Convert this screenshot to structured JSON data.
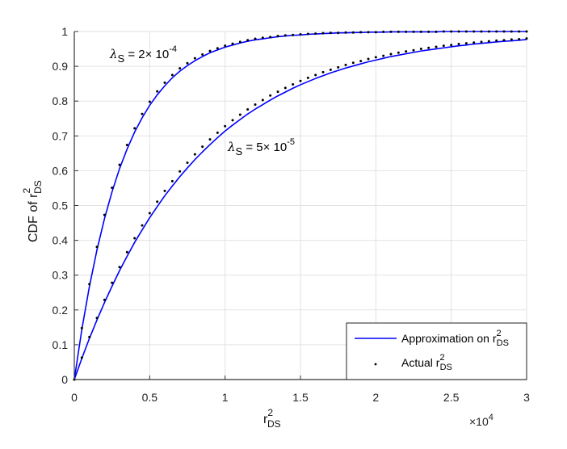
{
  "chart_data": {
    "type": "line",
    "xlabel": {
      "base": "r",
      "sup": "2",
      "sub": "DS"
    },
    "ylabel": {
      "base": "CDF of r",
      "sup": "2",
      "sub": "DS"
    },
    "x_multiplier": {
      "base": "×10",
      "sup": "4"
    },
    "xlim": [
      0,
      30000
    ],
    "ylim": [
      0,
      1
    ],
    "xticks": [
      0,
      5000,
      10000,
      15000,
      20000,
      25000,
      30000
    ],
    "xtick_labels": [
      "0",
      "0.5",
      "1",
      "1.5",
      "2",
      "2.5",
      "3"
    ],
    "yticks": [
      0,
      0.1,
      0.2,
      0.3,
      0.4,
      0.5,
      0.6,
      0.7,
      0.8,
      0.9,
      1
    ],
    "ytick_labels": [
      "0",
      "0.1",
      "0.2",
      "0.3",
      "0.4",
      "0.5",
      "0.6",
      "0.7",
      "0.8",
      "0.9",
      "1"
    ],
    "grid": true,
    "legend_position": "bottom-right",
    "legend": [
      {
        "label": "Approximation on r",
        "sup": "2",
        "sub": "DS",
        "style": "line",
        "color": "#0000ff"
      },
      {
        "label": "Actual r",
        "sup": "2",
        "sub": "DS",
        "style": "dots",
        "color": "#000000"
      }
    ],
    "annotations": [
      {
        "lambda": "λ",
        "sub": "S",
        "text": " = 2×  10",
        "sup": "-4"
      },
      {
        "lambda": "λ",
        "sub": "S",
        "text": " = 5×  10",
        "sup": "-5"
      }
    ],
    "x_step": 500,
    "series": [
      {
        "name": "Approximation λS=2e-4",
        "style": "line",
        "color": "#0000ff",
        "values": [
          0,
          0.144,
          0.267,
          0.372,
          0.462,
          0.539,
          0.606,
          0.662,
          0.711,
          0.752,
          0.788,
          0.818,
          0.844,
          0.867,
          0.886,
          0.902,
          0.916,
          0.928,
          0.939,
          0.947,
          0.955,
          0.961,
          0.967,
          0.972,
          0.976,
          0.979,
          0.982,
          0.985,
          0.987,
          0.989,
          0.99,
          0.992,
          0.993,
          0.994,
          0.995,
          0.996,
          0.996,
          0.997,
          0.997,
          0.998,
          0.998,
          0.998,
          0.999,
          0.999,
          0.999,
          0.999,
          0.999,
          0.999,
          0.999,
          1,
          1,
          1,
          1,
          1,
          1,
          1,
          1,
          1,
          1,
          1,
          1
        ]
      },
      {
        "name": "Approximation λS=5e-5",
        "style": "line",
        "color": "#0000ff",
        "values": [
          0,
          0.061,
          0.118,
          0.171,
          0.221,
          0.268,
          0.313,
          0.354,
          0.394,
          0.43,
          0.465,
          0.497,
          0.528,
          0.556,
          0.583,
          0.608,
          0.632,
          0.654,
          0.675,
          0.695,
          0.714,
          0.731,
          0.747,
          0.763,
          0.777,
          0.79,
          0.803,
          0.815,
          0.826,
          0.837,
          0.847,
          0.856,
          0.865,
          0.873,
          0.881,
          0.888,
          0.895,
          0.901,
          0.907,
          0.913,
          0.918,
          0.923,
          0.928,
          0.932,
          0.936,
          0.94,
          0.944,
          0.947,
          0.95,
          0.953,
          0.956,
          0.959,
          0.961,
          0.964,
          0.966,
          0.968,
          0.97,
          0.972,
          0.973,
          0.975,
          0.977
        ]
      },
      {
        "name": "Actual λS=2e-4",
        "style": "dots",
        "color": "#000000",
        "values": [
          0,
          0.148,
          0.274,
          0.381,
          0.473,
          0.551,
          0.617,
          0.674,
          0.722,
          0.763,
          0.798,
          0.828,
          0.853,
          0.875,
          0.894,
          0.909,
          0.923,
          0.934,
          0.944,
          0.952,
          0.959,
          0.965,
          0.97,
          0.975,
          0.979,
          0.982,
          0.984,
          0.987,
          0.989,
          0.99,
          0.992,
          0.993,
          0.994,
          0.995,
          0.996,
          0.996,
          0.997,
          0.997,
          0.998,
          0.998,
          0.998,
          0.999,
          0.999,
          0.999,
          0.999,
          0.999,
          0.999,
          0.999,
          0.999,
          1,
          1,
          1,
          1,
          1,
          1,
          1,
          1,
          1,
          1,
          1,
          1
        ]
      },
      {
        "name": "Actual λS=5e-5",
        "style": "dots",
        "color": "#000000",
        "values": [
          0,
          0.063,
          0.122,
          0.177,
          0.229,
          0.278,
          0.323,
          0.366,
          0.406,
          0.443,
          0.478,
          0.511,
          0.542,
          0.57,
          0.598,
          0.623,
          0.647,
          0.669,
          0.69,
          0.709,
          0.728,
          0.745,
          0.761,
          0.776,
          0.79,
          0.803,
          0.816,
          0.827,
          0.838,
          0.848,
          0.858,
          0.867,
          0.875,
          0.883,
          0.89,
          0.897,
          0.904,
          0.91,
          0.915,
          0.921,
          0.926,
          0.93,
          0.935,
          0.939,
          0.943,
          0.946,
          0.95,
          0.953,
          0.956,
          0.959,
          0.961,
          0.964,
          0.966,
          0.968,
          0.97,
          0.972,
          0.974,
          0.975,
          0.977,
          0.978,
          0.98
        ]
      }
    ]
  }
}
